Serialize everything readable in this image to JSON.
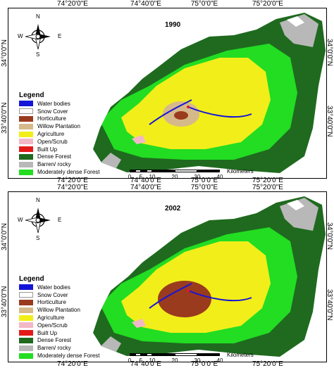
{
  "coordinates": {
    "longitude_ticks": [
      "74°20'0\"E",
      "74°40'0\"E",
      "75°0'0\"E",
      "75°20'0\"E"
    ],
    "latitude_ticks": [
      "34°0'0\"N",
      "33°40'0\"N"
    ]
  },
  "north_arrow": {
    "n": "N",
    "s": "S",
    "e": "E",
    "w": "W"
  },
  "legend": {
    "title": "Legend",
    "items": [
      {
        "label": "Water bodies",
        "color": "#1515d8"
      },
      {
        "label": "Snow Cover",
        "color": "#ffffff"
      },
      {
        "label": "Horticulture",
        "color": "#9a3b1e"
      },
      {
        "label": "Willow Plantation",
        "color": "#d6b98a"
      },
      {
        "label": "Agriculture",
        "color": "#f2ee1a"
      },
      {
        "label": "Open/Scrub",
        "color": "#f2b8c8"
      },
      {
        "label": "Built Up",
        "color": "#e41a1a"
      },
      {
        "label": "Dense Forest",
        "color": "#1f6a1f"
      },
      {
        "label": "Barren/ rocky",
        "color": "#b8b8b8"
      },
      {
        "label": "Moderately dense Forest",
        "color": "#22dd22"
      }
    ]
  },
  "scale_bar": {
    "unit": "Kilometers",
    "labels": [
      "0",
      "5",
      "10",
      "20",
      "30",
      "40"
    ],
    "stops_km": [
      0,
      2.5,
      5,
      7.5,
      10,
      20,
      30,
      40
    ]
  },
  "maps": [
    {
      "year": "1990",
      "horticulture_extent": "low"
    },
    {
      "year": "2002",
      "horticulture_extent": "high"
    }
  ]
}
